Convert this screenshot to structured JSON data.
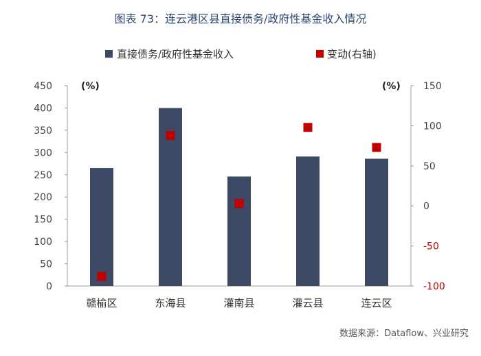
{
  "title": "图表 73：连云港区县直接债务/政府性基金收入情况",
  "source": "数据来源：Dataflow、兴业研究",
  "colors": {
    "bar": "#3d4a66",
    "marker": "#c00000",
    "axis": "#999999",
    "right_neg_tick": "#c00000"
  },
  "chart_data": {
    "type": "bar",
    "categories": [
      "赣榆区",
      "东海县",
      "灌南县",
      "灌云县",
      "连云区"
    ],
    "series": [
      {
        "name": "直接债务/政府性基金收入",
        "type": "bar",
        "axis": "left",
        "values": [
          265,
          400,
          246,
          291,
          286
        ]
      },
      {
        "name": "变动(右轴)",
        "type": "scatter",
        "axis": "right",
        "values": [
          -88,
          88,
          3,
          98,
          73
        ]
      }
    ],
    "left_axis": {
      "unit": "(%)",
      "ylim": [
        0,
        450
      ],
      "ticks": [
        "0",
        "50",
        "100",
        "150",
        "200",
        "250",
        "300",
        "350",
        "400",
        "450"
      ]
    },
    "right_axis": {
      "unit": "(%)",
      "ylim": [
        -100,
        150
      ],
      "ticks": [
        "-100",
        "-50",
        "0",
        "50",
        "100",
        "150"
      ]
    },
    "legend_position": "top",
    "grid": false
  }
}
